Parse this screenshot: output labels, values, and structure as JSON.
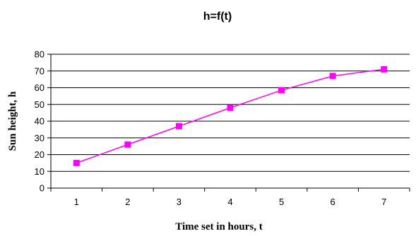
{
  "chart_data": {
    "type": "line",
    "title": "h=f(t)",
    "xlabel": "Time set in hours, t",
    "ylabel": "Sun height, h",
    "categories": [
      "1",
      "2",
      "3",
      "4",
      "5",
      "6",
      "7"
    ],
    "series": [
      {
        "values": [
          15,
          26,
          37,
          48,
          58.5,
          67,
          71
        ],
        "color": "#ff00ff"
      }
    ],
    "ylim": [
      0,
      80
    ],
    "yticks": [
      "0",
      "10",
      "20",
      "30",
      "40",
      "50",
      "60",
      "70",
      "80"
    ],
    "grid": "horizontal",
    "marker": "square"
  }
}
